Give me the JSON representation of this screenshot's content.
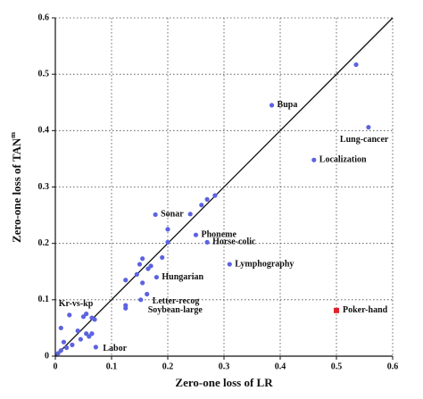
{
  "chart_data": {
    "type": "scatter",
    "xlabel": "Zero-one loss of LR",
    "ylabel": "Zero-one loss of TAN",
    "ylabel_sup": "m",
    "xlim": [
      0,
      0.6
    ],
    "ylim": [
      0,
      0.6
    ],
    "xticks": [
      0,
      0.1,
      0.2,
      0.3,
      0.4,
      0.5,
      0.6
    ],
    "yticks": [
      0,
      0.1,
      0.2,
      0.3,
      0.4,
      0.5,
      0.6
    ],
    "grid": true,
    "diagonal": true,
    "series": [
      {
        "color": "#5b63e0",
        "marker": "circle",
        "x": [
          0.385,
          0.557,
          0.46,
          0.178,
          0.25,
          0.27,
          0.31,
          0.18,
          0.163,
          0.152,
          0.025,
          0.072,
          0.535,
          0.284,
          0.27,
          0.26,
          0.24,
          0.2,
          0.2,
          0.19,
          0.155,
          0.15,
          0.17,
          0.165,
          0.125,
          0.155,
          0.145,
          0.125,
          0.125,
          0.01,
          0.05,
          0.055,
          0.065,
          0.07,
          0.04,
          0.03,
          0.02,
          0.055,
          0.06,
          0.065,
          0.045,
          0.01,
          0.005,
          0.015
        ],
        "y": [
          0.445,
          0.406,
          0.348,
          0.251,
          0.215,
          0.202,
          0.163,
          0.14,
          0.11,
          0.1,
          0.073,
          0.016,
          0.517,
          0.285,
          0.278,
          0.268,
          0.252,
          0.225,
          0.202,
          0.175,
          0.173,
          0.163,
          0.16,
          0.155,
          0.135,
          0.13,
          0.145,
          0.09,
          0.085,
          0.05,
          0.07,
          0.075,
          0.068,
          0.065,
          0.045,
          0.02,
          0.015,
          0.04,
          0.035,
          0.04,
          0.03,
          0.01,
          0.005,
          0.025
        ],
        "labels": [
          "Bupa",
          "Lung-cancer",
          "Localization",
          "Sonar",
          "Phoneme",
          "Horse-colic",
          "Lymphography",
          "Hungarian",
          "Letter-recog",
          "Soybean-large",
          "Kr-vs-kp",
          "Labor",
          null,
          null,
          null,
          null,
          null,
          null,
          null,
          null,
          null,
          null,
          null,
          null,
          null,
          null,
          null,
          null,
          null,
          null,
          null,
          null,
          null,
          null,
          null,
          null,
          null,
          null,
          null,
          null,
          null,
          null,
          null,
          null
        ]
      },
      {
        "color": "#e0202a",
        "marker": "square",
        "x": [
          0.5
        ],
        "y": [
          0.081
        ],
        "labels": [
          "Poker-hand"
        ]
      }
    ]
  }
}
